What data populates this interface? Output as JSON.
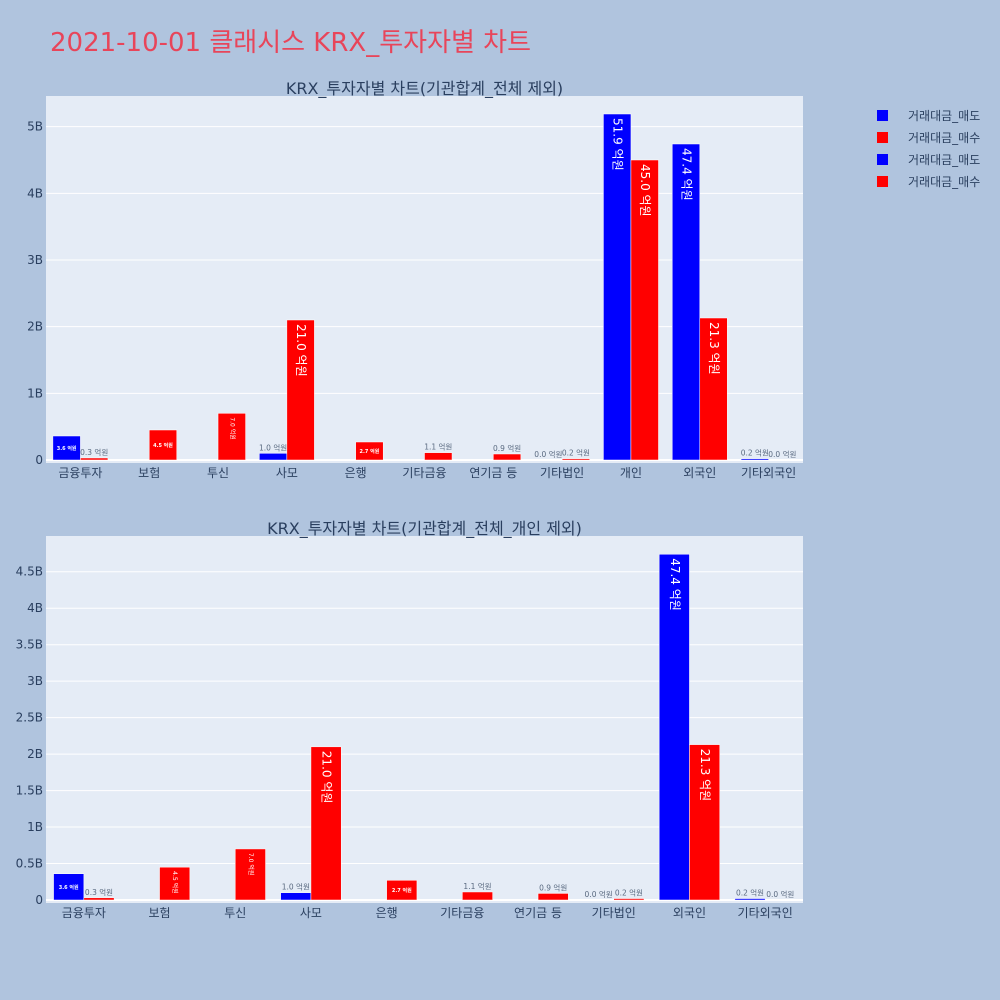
{
  "title": "2021-10-01 클래시스 KRX_투자자별 차트",
  "legend": [
    {
      "label": "거래대금_매도",
      "color": "#0000ff"
    },
    {
      "label": "거래대금_매수",
      "color": "#ff0000"
    },
    {
      "label": "거래대금_매도",
      "color": "#0000ff"
    },
    {
      "label": "거래대금_매수",
      "color": "#ff0000"
    }
  ],
  "colors": {
    "sell": "#0000ff",
    "buy": "#ff0000",
    "plot_bg": "#e5ecf6",
    "page_bg": "#b0c4de",
    "text": "#2a3f5f"
  },
  "chart_data": [
    {
      "type": "bar",
      "title": "KRX_투자자별 차트(기관합계_전체 제외)",
      "categories": [
        "금융투자",
        "보험",
        "투신",
        "사모",
        "은행",
        "기타금융",
        "연기금 등",
        "기타법인",
        "개인",
        "외국인",
        "기타외국인"
      ],
      "series": [
        {
          "name": "거래대금_매도",
          "values": [
            360000000,
            0,
            0,
            100000000,
            0,
            0,
            0,
            0,
            5190000000,
            4740000000,
            20000000
          ],
          "labels": [
            "3.6 억원",
            "",
            "",
            "1.0 억원",
            "",
            "",
            "",
            "0.0 억원",
            "51.9 억원",
            "47.4 억원",
            "0.2 억원"
          ]
        },
        {
          "name": "거래대금_매수",
          "values": [
            30000000,
            450000000,
            700000000,
            2100000000,
            270000000,
            110000000,
            90000000,
            20000000,
            4500000000,
            2130000000,
            0
          ],
          "labels": [
            "0.3 억원",
            "4.5 억원",
            "7.0 억원",
            "21.0 억원",
            "2.7 억원",
            "1.1 억원",
            "0.9 억원",
            "0.2 억원",
            "45.0 억원",
            "21.3 억원",
            "0.0 억원"
          ]
        }
      ],
      "yticks": [
        0,
        1000000000,
        2000000000,
        3000000000,
        4000000000,
        5000000000
      ],
      "ytick_labels": [
        "0",
        "1B",
        "2B",
        "3B",
        "4B",
        "5B"
      ],
      "ylim": [
        0,
        5460000000
      ],
      "grid": true
    },
    {
      "type": "bar",
      "title": "KRX_투자자별 차트(기관합계_전체_개인 제외)",
      "categories": [
        "금융투자",
        "보험",
        "투신",
        "사모",
        "은행",
        "기타금융",
        "연기금 등",
        "기타법인",
        "외국인",
        "기타외국인"
      ],
      "series": [
        {
          "name": "거래대금_매도",
          "values": [
            360000000,
            0,
            0,
            100000000,
            0,
            0,
            0,
            0,
            4740000000,
            20000000
          ],
          "labels": [
            "3.6 억원",
            "",
            "",
            "1.0 억원",
            "",
            "",
            "",
            "0.0 억원",
            "47.4 억원",
            "0.2 억원"
          ]
        },
        {
          "name": "거래대금_매수",
          "values": [
            30000000,
            450000000,
            700000000,
            2100000000,
            270000000,
            110000000,
            90000000,
            20000000,
            2130000000,
            0
          ],
          "labels": [
            "0.3 억원",
            "4.5 억원",
            "7.0 억원",
            "21.0 억원",
            "2.7 억원",
            "1.1 억원",
            "0.9 억원",
            "0.2 억원",
            "21.3 억원",
            "0.0 억원"
          ]
        }
      ],
      "yticks": [
        0,
        500000000,
        1000000000,
        1500000000,
        2000000000,
        2500000000,
        3000000000,
        3500000000,
        4000000000,
        4500000000
      ],
      "ytick_labels": [
        "0",
        "0.5B",
        "1B",
        "1.5B",
        "2B",
        "2.5B",
        "3B",
        "3.5B",
        "4B",
        "4.5B"
      ],
      "ylim": [
        0,
        4990000000
      ],
      "grid": true
    }
  ]
}
